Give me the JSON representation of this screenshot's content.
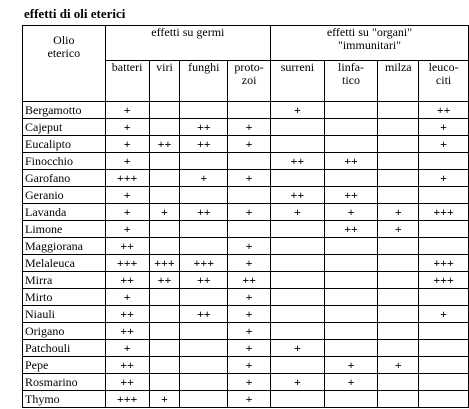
{
  "title": "effetti di oli eterici",
  "table": {
    "corner": "Olio\neterico",
    "groups": [
      "effetti su germi",
      "effetti su \"organi\"\n\"immunitari\""
    ],
    "columns": [
      "batteri",
      "viri",
      "funghi",
      "proto-\nzoi",
      "surreni",
      "linfa-\ntico",
      "milza",
      "leuco-\nciti"
    ],
    "rows": [
      [
        "Bergamotto",
        "+",
        null,
        null,
        null,
        "+",
        null,
        null,
        "++"
      ],
      [
        "Cajeput",
        "+",
        null,
        "++",
        "+",
        null,
        null,
        null,
        "+"
      ],
      [
        "Eucalipto",
        "+",
        "++",
        "++",
        "+",
        null,
        null,
        null,
        "+"
      ],
      [
        "Finocchio",
        "+",
        null,
        null,
        null,
        "++",
        "++",
        null,
        null
      ],
      [
        "Garofano",
        "+++",
        null,
        "+",
        "+",
        null,
        null,
        null,
        "+"
      ],
      [
        "Geranio",
        "+",
        null,
        null,
        null,
        "++",
        "++",
        null,
        null
      ],
      [
        "Lavanda",
        "+",
        "+",
        "++",
        "+",
        "+",
        "+",
        "+",
        "+++"
      ],
      [
        "Limone",
        "+",
        null,
        null,
        null,
        null,
        "++",
        "+",
        null
      ],
      [
        "Maggiorana",
        "++",
        null,
        null,
        "+",
        null,
        null,
        null,
        null
      ],
      [
        "Melaleuca",
        "+++",
        "+++",
        "+++",
        "+",
        null,
        null,
        null,
        "+++"
      ],
      [
        "Mirra",
        "++",
        "++",
        "++",
        "++",
        null,
        null,
        null,
        "+++"
      ],
      [
        "Mirto",
        "+",
        null,
        null,
        "+",
        null,
        null,
        null,
        null
      ],
      [
        "Niauli",
        "++",
        null,
        "++",
        "+",
        null,
        null,
        null,
        "+"
      ],
      [
        "Origano",
        "++",
        null,
        null,
        "+",
        null,
        null,
        null,
        null
      ],
      [
        "Patchouli",
        "+",
        null,
        null,
        "+",
        "+",
        null,
        null,
        null
      ],
      [
        "Pepe",
        "++",
        null,
        null,
        "+",
        null,
        "+",
        "+",
        null
      ],
      [
        "Rosmarino",
        "++",
        null,
        null,
        "+",
        "+",
        "+",
        null,
        null
      ],
      [
        "Thymo",
        "+++",
        "+",
        null,
        "+",
        null,
        null,
        null,
        null
      ]
    ]
  }
}
